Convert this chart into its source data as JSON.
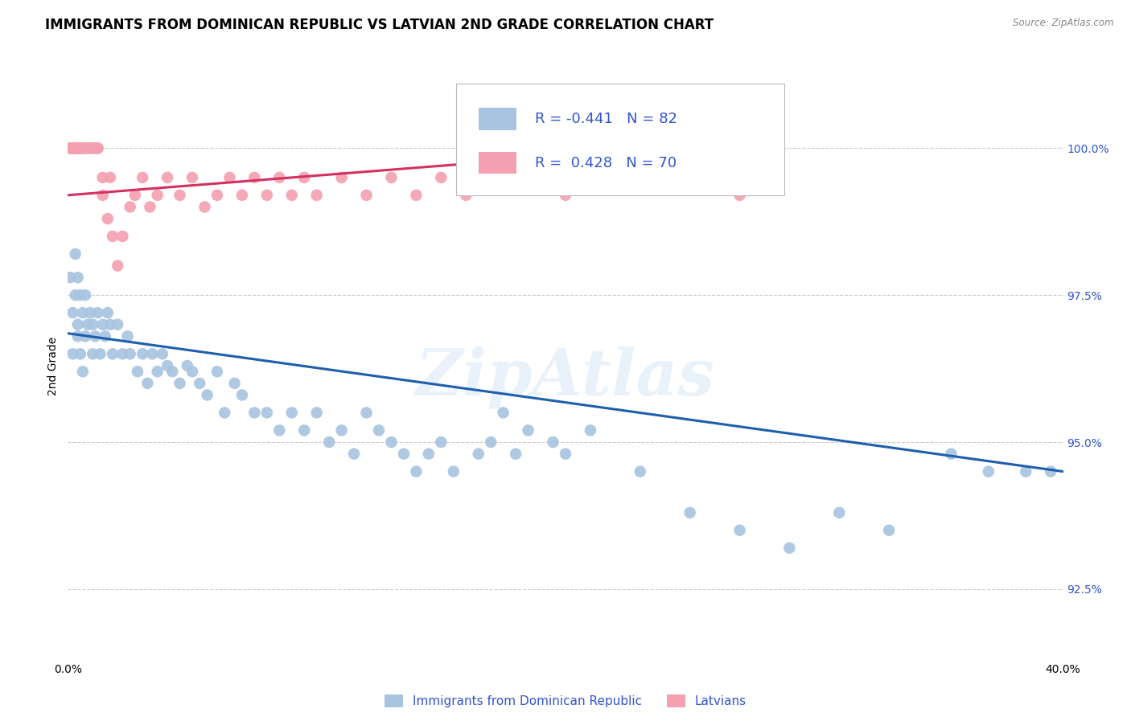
{
  "title": "IMMIGRANTS FROM DOMINICAN REPUBLIC VS LATVIAN 2ND GRADE CORRELATION CHART",
  "source": "Source: ZipAtlas.com",
  "ylabel": "2nd Grade",
  "yticks": [
    92.5,
    95.0,
    97.5,
    100.0
  ],
  "ytick_labels": [
    "92.5%",
    "95.0%",
    "97.5%",
    "100.0%"
  ],
  "xlim": [
    0.0,
    0.4
  ],
  "ylim": [
    91.3,
    101.3
  ],
  "blue_color": "#A8C4E0",
  "pink_color": "#F4A0B0",
  "blue_line_color": "#1E5FAD",
  "pink_line_color": "#D43060",
  "legend_text_color": "#3355CC",
  "tick_color": "#3355CC",
  "watermark": "ZipAtlas",
  "blue_R": "-0.441",
  "blue_N": "82",
  "pink_R": "0.428",
  "pink_N": "70",
  "blue_scatter_x": [
    0.001,
    0.002,
    0.002,
    0.003,
    0.003,
    0.004,
    0.004,
    0.004,
    0.005,
    0.005,
    0.006,
    0.006,
    0.007,
    0.007,
    0.008,
    0.009,
    0.01,
    0.01,
    0.011,
    0.012,
    0.013,
    0.014,
    0.015,
    0.016,
    0.017,
    0.018,
    0.02,
    0.022,
    0.024,
    0.025,
    0.028,
    0.03,
    0.032,
    0.034,
    0.036,
    0.038,
    0.04,
    0.042,
    0.045,
    0.048,
    0.05,
    0.053,
    0.056,
    0.06,
    0.063,
    0.067,
    0.07,
    0.075,
    0.08,
    0.085,
    0.09,
    0.095,
    0.1,
    0.105,
    0.11,
    0.115,
    0.12,
    0.125,
    0.13,
    0.135,
    0.14,
    0.145,
    0.15,
    0.155,
    0.165,
    0.17,
    0.175,
    0.18,
    0.185,
    0.195,
    0.2,
    0.21,
    0.23,
    0.25,
    0.27,
    0.29,
    0.31,
    0.33,
    0.355,
    0.37,
    0.385,
    0.395
  ],
  "blue_scatter_y": [
    97.8,
    97.2,
    96.5,
    97.5,
    98.2,
    96.8,
    97.0,
    97.8,
    96.5,
    97.5,
    96.2,
    97.2,
    97.5,
    96.8,
    97.0,
    97.2,
    96.5,
    97.0,
    96.8,
    97.2,
    96.5,
    97.0,
    96.8,
    97.2,
    97.0,
    96.5,
    97.0,
    96.5,
    96.8,
    96.5,
    96.2,
    96.5,
    96.0,
    96.5,
    96.2,
    96.5,
    96.3,
    96.2,
    96.0,
    96.3,
    96.2,
    96.0,
    95.8,
    96.2,
    95.5,
    96.0,
    95.8,
    95.5,
    95.5,
    95.2,
    95.5,
    95.2,
    95.5,
    95.0,
    95.2,
    94.8,
    95.5,
    95.2,
    95.0,
    94.8,
    94.5,
    94.8,
    95.0,
    94.5,
    94.8,
    95.0,
    95.5,
    94.8,
    95.2,
    95.0,
    94.8,
    95.2,
    94.5,
    93.8,
    93.5,
    93.2,
    93.8,
    93.5,
    94.8,
    94.5,
    94.5,
    94.5
  ],
  "pink_scatter_x": [
    0.001,
    0.001,
    0.001,
    0.002,
    0.002,
    0.002,
    0.002,
    0.003,
    0.003,
    0.003,
    0.003,
    0.004,
    0.004,
    0.004,
    0.004,
    0.004,
    0.004,
    0.004,
    0.004,
    0.005,
    0.005,
    0.005,
    0.006,
    0.006,
    0.006,
    0.007,
    0.008,
    0.008,
    0.009,
    0.01,
    0.01,
    0.011,
    0.011,
    0.012,
    0.012,
    0.014,
    0.014,
    0.016,
    0.017,
    0.018,
    0.02,
    0.022,
    0.025,
    0.027,
    0.03,
    0.033,
    0.036,
    0.04,
    0.045,
    0.05,
    0.055,
    0.06,
    0.065,
    0.07,
    0.075,
    0.08,
    0.085,
    0.09,
    0.095,
    0.1,
    0.11,
    0.12,
    0.13,
    0.14,
    0.15,
    0.16,
    0.17,
    0.2,
    0.23,
    0.27
  ],
  "pink_scatter_y": [
    100.0,
    100.0,
    100.0,
    100.0,
    100.0,
    100.0,
    100.0,
    100.0,
    100.0,
    100.0,
    100.0,
    100.0,
    100.0,
    100.0,
    100.0,
    100.0,
    100.0,
    100.0,
    100.0,
    100.0,
    100.0,
    100.0,
    100.0,
    100.0,
    100.0,
    100.0,
    100.0,
    100.0,
    100.0,
    100.0,
    100.0,
    100.0,
    100.0,
    100.0,
    100.0,
    99.2,
    99.5,
    98.8,
    99.5,
    98.5,
    98.0,
    98.5,
    99.0,
    99.2,
    99.5,
    99.0,
    99.2,
    99.5,
    99.2,
    99.5,
    99.0,
    99.2,
    99.5,
    99.2,
    99.5,
    99.2,
    99.5,
    99.2,
    99.5,
    99.2,
    99.5,
    99.2,
    99.5,
    99.2,
    99.5,
    99.2,
    99.5,
    99.2,
    99.5,
    99.2
  ],
  "blue_trend_x": [
    0.0,
    0.4
  ],
  "blue_trend_y": [
    96.85,
    94.5
  ],
  "pink_trend_x": [
    0.0,
    0.27
  ],
  "pink_trend_y": [
    99.2,
    100.1
  ],
  "grid_color": "#CCCCCC",
  "grid_style": "--",
  "background_color": "#FFFFFF",
  "title_fontsize": 12,
  "axis_label_fontsize": 10,
  "tick_fontsize": 10,
  "legend_fontsize": 13
}
